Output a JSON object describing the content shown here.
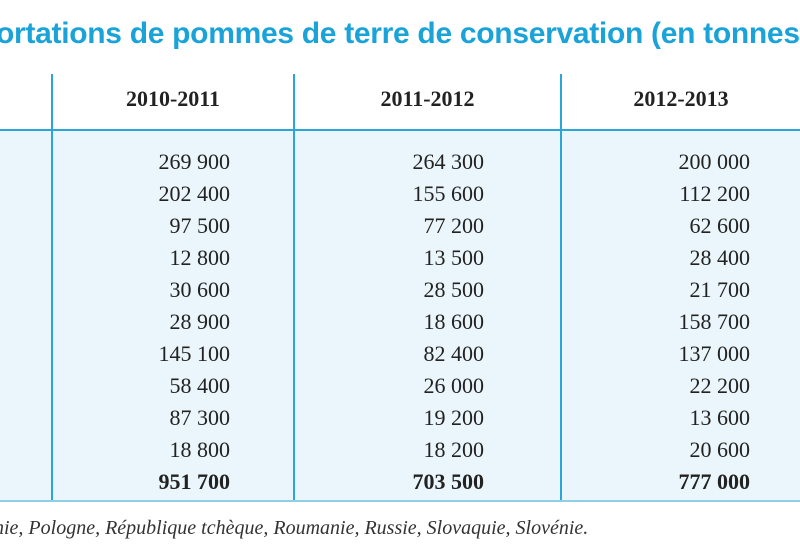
{
  "title": "portations de pommes de terre de conservation (en tonnes",
  "columns": [
    "2010-2011",
    "2011-2012",
    "2012-2013"
  ],
  "rows": [
    [
      "269 900",
      "264 300",
      "200 000"
    ],
    [
      "202 400",
      "155 600",
      "112 200"
    ],
    [
      "97 500",
      "77 200",
      "62 600"
    ],
    [
      "12 800",
      "13 500",
      "28 400"
    ],
    [
      "30 600",
      "28 500",
      "21 700"
    ],
    [
      "28 900",
      "18 600",
      "158 700"
    ],
    [
      "145 100",
      "82 400",
      "137 000"
    ],
    [
      "58 400",
      "26 000",
      "22 200"
    ],
    [
      "87 300",
      "19 200",
      "13 600"
    ],
    [
      "18 800",
      "18 200",
      "20 600"
    ]
  ],
  "totals": [
    "951 700",
    "703 500",
    "777 000"
  ],
  "footnote": "nie, Pologne, République tchèque, Roumanie, Russie, Slovaquie, Slovénie."
}
